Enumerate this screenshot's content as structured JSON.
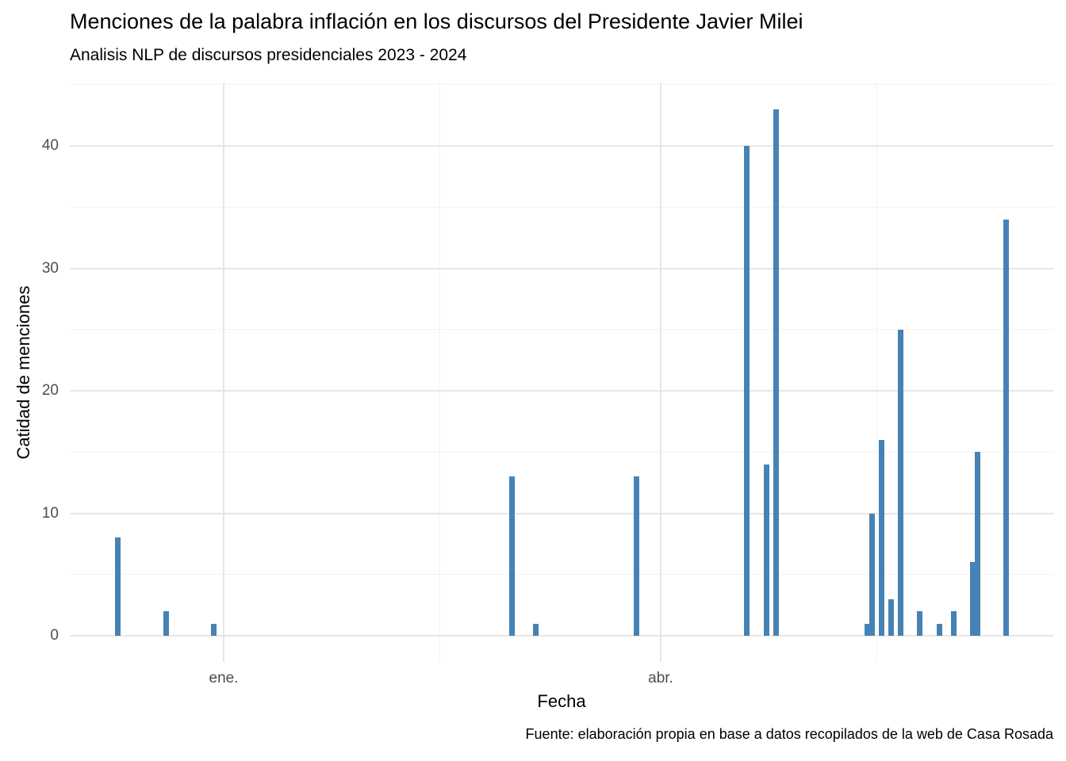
{
  "chart_data": {
    "type": "bar",
    "title": "Menciones de la palabra inflación en los discursos del Presidente Javier Milei",
    "subtitle": "Analisis NLP de discursos presidenciales 2023 - 2024",
    "caption": "Fuente: elaboración propia en base a datos recopilados de la web de Casa Rosada",
    "xlabel": "Fecha",
    "ylabel": "Catidad de menciones",
    "legend": "none",
    "grid": true,
    "bar_color": "#4682B4",
    "grid_major_color": "#e6e6e6",
    "grid_minor_color": "#f2f2f2",
    "tick_text_color": "#4d4d4d",
    "x_axis": {
      "type": "date",
      "range": [
        "2023-11-30",
        "2024-06-21"
      ],
      "major_ticks": [
        {
          "date": "2024-01-01",
          "label": "ene."
        },
        {
          "date": "2024-04-01",
          "label": "abr."
        }
      ],
      "minor_gridlines": [
        "2024-02-15",
        "2024-05-16"
      ]
    },
    "y_axis": {
      "range": [
        -2,
        45
      ],
      "major_ticks": [
        0,
        10,
        20,
        30,
        40
      ],
      "minor_gridlines": [
        5,
        15,
        25,
        35,
        45
      ]
    },
    "bars": [
      {
        "date": "2023-12-10",
        "value": 8
      },
      {
        "date": "2023-12-20",
        "value": 2
      },
      {
        "date": "2023-12-30",
        "value": 1
      },
      {
        "date": "2024-03-01",
        "value": 13
      },
      {
        "date": "2024-03-06",
        "value": 1
      },
      {
        "date": "2024-03-27",
        "value": 13
      },
      {
        "date": "2024-04-19",
        "value": 40
      },
      {
        "date": "2024-04-23",
        "value": 14
      },
      {
        "date": "2024-04-25",
        "value": 43
      },
      {
        "date": "2024-05-14",
        "value": 1
      },
      {
        "date": "2024-05-15",
        "value": 10
      },
      {
        "date": "2024-05-17",
        "value": 16
      },
      {
        "date": "2024-05-19",
        "value": 3
      },
      {
        "date": "2024-05-21",
        "value": 25
      },
      {
        "date": "2024-05-25",
        "value": 2
      },
      {
        "date": "2024-05-29",
        "value": 1
      },
      {
        "date": "2024-06-01",
        "value": 2
      },
      {
        "date": "2024-06-05",
        "value": 6
      },
      {
        "date": "2024-06-06",
        "value": 15
      },
      {
        "date": "2024-06-12",
        "value": 34
      }
    ]
  }
}
